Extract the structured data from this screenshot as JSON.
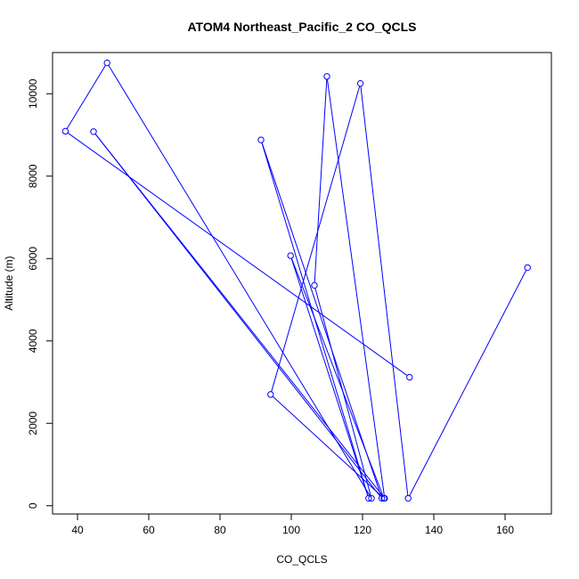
{
  "chart_data": {
    "type": "line",
    "title": "ATOM4 Northeast_Pacific_2 CO_QCLS",
    "xlabel": "CO_QCLS",
    "ylabel": "Altitude (m)",
    "xlim": [
      33,
      173
    ],
    "ylim": [
      -200,
      11000
    ],
    "xticks": [
      40,
      60,
      80,
      100,
      120,
      140,
      160
    ],
    "yticks": [
      0,
      2000,
      4000,
      6000,
      8000,
      10000
    ],
    "grid": false,
    "legend": "none",
    "series": [
      {
        "color": "#0000ff",
        "points": [
          [
            166.3,
            5780
          ],
          [
            132.8,
            180
          ],
          [
            119.4,
            10250
          ],
          [
            94.2,
            2700
          ],
          [
            126.0,
            180
          ],
          [
            99.8,
            6070
          ],
          [
            121.7,
            180
          ],
          [
            91.5,
            8880
          ],
          [
            125.4,
            180
          ],
          [
            44.5,
            9080
          ],
          [
            126.2,
            180
          ],
          [
            110.0,
            10420
          ],
          [
            106.5,
            5350
          ],
          [
            122.5,
            180
          ],
          [
            48.3,
            10750
          ],
          [
            36.6,
            9090
          ],
          [
            133.2,
            3120
          ]
        ]
      }
    ]
  }
}
